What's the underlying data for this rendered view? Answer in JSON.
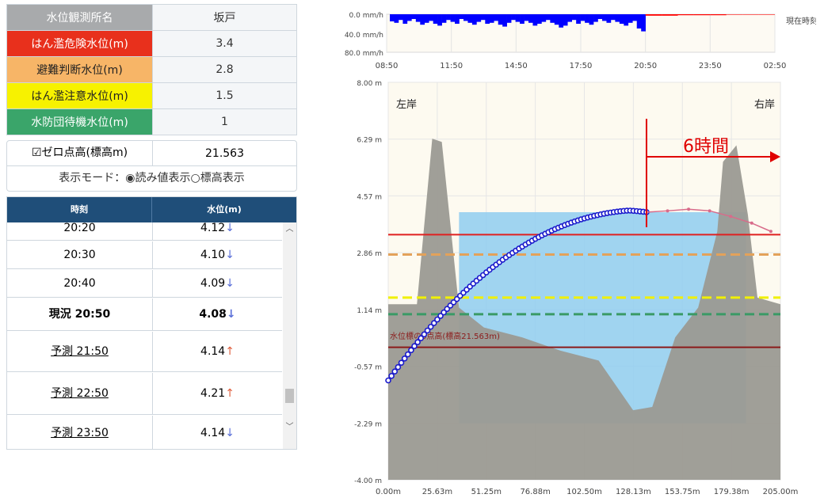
{
  "station": {
    "label": "水位観測所名",
    "value": "坂戸"
  },
  "levels": [
    {
      "label": "はん濫危険水位(m)",
      "value": "3.4",
      "color": "#e8301c",
      "text_color": "#ffffff"
    },
    {
      "label": "避難判断水位(m)",
      "value": "2.8",
      "color": "#f7b567",
      "text_color": "#222222"
    },
    {
      "label": "はん濫注意水位(m)",
      "value": "1.5",
      "color": "#f7f200",
      "text_color": "#222222"
    },
    {
      "label": "水防団待機水位(m)",
      "value": "1",
      "color": "#3aa56a",
      "text_color": "#ffffff"
    }
  ],
  "zero_point": {
    "checkbox": "☑",
    "label": "ゼロ点高(標高m)",
    "value": "21.563"
  },
  "mode": {
    "label": "表示モード：",
    "opt1_mark": "◉",
    "opt1": "読み値表示",
    "opt2_mark": "○",
    "opt2": "標高表示"
  },
  "table": {
    "headers": [
      "時刻",
      "水位(m)"
    ],
    "rows": [
      {
        "time": "20:20",
        "value": "4.12",
        "arrow": "↓"
      },
      {
        "time": "20:30",
        "value": "4.10",
        "arrow": "↓"
      },
      {
        "time": "20:40",
        "value": "4.09",
        "arrow": "↓"
      },
      {
        "time": "現況 20:50",
        "value": "4.08",
        "arrow": "↓"
      },
      {
        "time": "予測 21:50",
        "value": "4.14",
        "arrow": "↑"
      },
      {
        "time": "予測 22:50",
        "value": "4.21",
        "arrow": "↑"
      },
      {
        "time": "予測 23:50",
        "value": "4.14",
        "arrow": "↓"
      }
    ]
  },
  "rain_chart": {
    "y_ticks": [
      "0.0 mm/h",
      "40.0 mm/h",
      "80.0 mm/h"
    ],
    "x_ticks": [
      "08:50",
      "11:50",
      "14:50",
      "17:50",
      "20:50",
      "23:50",
      "02:50"
    ],
    "right_label": "現在時刻",
    "observed_color": "#0000ff",
    "forecast_color": "#ff0000",
    "observed_mmh": [
      15,
      18,
      12,
      20,
      14,
      10,
      16,
      22,
      18,
      14,
      20,
      24,
      18,
      12,
      16,
      20,
      10,
      14,
      18,
      22,
      16,
      12,
      20,
      18,
      14,
      22,
      26,
      18,
      12,
      16,
      20,
      14,
      18,
      24,
      20,
      16,
      12,
      18,
      22,
      28,
      24,
      16,
      12,
      20,
      14,
      18,
      22,
      16,
      10,
      14,
      18,
      12,
      16,
      20,
      24,
      18,
      14,
      30,
      36
    ],
    "forecast_mmh": [
      3,
      3,
      2,
      2,
      2,
      1,
      1,
      1
    ]
  },
  "section_chart": {
    "y_ticks": [
      "8.00 m",
      "6.29 m",
      "4.57 m",
      "2.86 m",
      "1.14 m",
      "-0.57 m",
      "-2.29 m",
      "-4.00 m"
    ],
    "x_ticks": [
      "0.00m",
      "25.63m",
      "51.25m",
      "76.88m",
      "102.50m",
      "128.13m",
      "153.75m",
      "179.38m",
      "205.00m"
    ],
    "left_bank": "左岸",
    "right_bank": "右岸",
    "forecast_span": "6時間",
    "zero_label": "水位標の0点高(標高21.563m)",
    "water_level": 4.08,
    "danger_level": 3.4,
    "judge_level": 2.8,
    "caution_level": 1.5,
    "standby_level": 1.0,
    "zero_level": 0.0
  }
}
